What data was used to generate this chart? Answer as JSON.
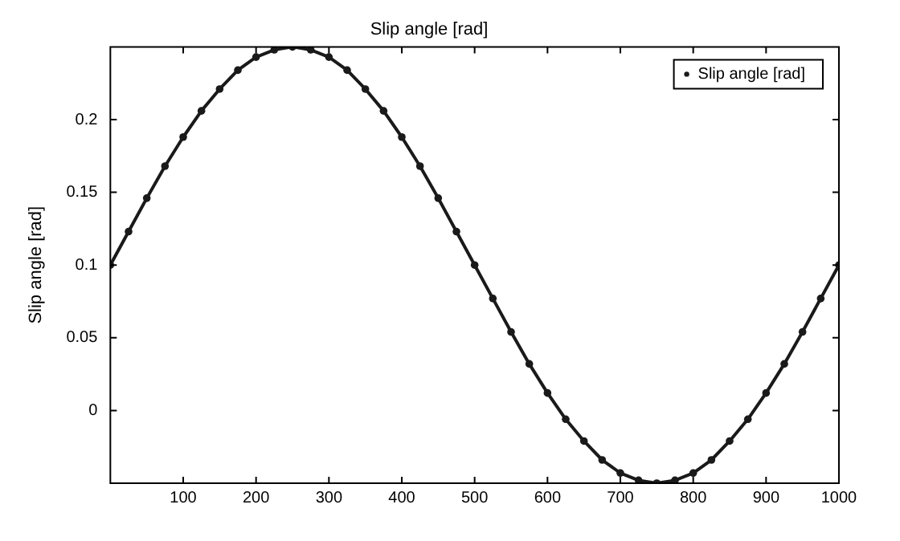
{
  "chart_data": {
    "type": "line",
    "title": "Slip angle [rad]",
    "ylabel": "Slip angle [rad]",
    "x": [
      0,
      25,
      50,
      75,
      100,
      125,
      150,
      175,
      200,
      225,
      250,
      275,
      300,
      325,
      350,
      375,
      400,
      425,
      450,
      475,
      500,
      525,
      550,
      575,
      600,
      625,
      650,
      675,
      700,
      725,
      750,
      775,
      800,
      825,
      850,
      875,
      900,
      925,
      950,
      975,
      1000
    ],
    "series": [
      {
        "name": "Slip angle [rad]",
        "color": "#1a1a1a",
        "values": [
          0.1,
          0.123,
          0.146,
          0.168,
          0.188,
          0.206,
          0.221,
          0.234,
          0.243,
          0.248,
          0.25,
          0.248,
          0.243,
          0.234,
          0.221,
          0.206,
          0.188,
          0.168,
          0.146,
          0.123,
          0.1,
          0.077,
          0.054,
          0.032,
          0.012,
          -0.006,
          -0.021,
          -0.034,
          -0.043,
          -0.048,
          -0.05,
          -0.048,
          -0.043,
          -0.034,
          -0.021,
          -0.006,
          0.012,
          0.032,
          0.054,
          0.077,
          0.1
        ]
      }
    ],
    "xlim": [
      0,
      1000
    ],
    "xticks": [
      100,
      200,
      300,
      400,
      500,
      600,
      700,
      800,
      900,
      1000
    ],
    "ylim": [
      -0.05,
      0.25
    ],
    "yticks": [
      0,
      0.05,
      0.1,
      0.15,
      0.2
    ],
    "grid": false,
    "legend": "top right",
    "marker": "circle",
    "line_style": "solid"
  }
}
